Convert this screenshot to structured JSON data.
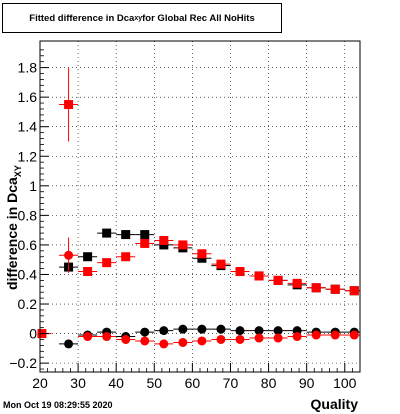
{
  "title_main": "Fitted difference in Dca",
  "title_sub": "xy",
  "title_rest": " for Global Rec All NoHits",
  "timestamp": "Mon Oct 19 08:29:55 2020",
  "chart_data": {
    "type": "scatter",
    "xlabel": "Quality",
    "ylabel_main": "difference in Dca",
    "ylabel_sub": "XY",
    "xlim": [
      20,
      104
    ],
    "ylim": [
      -0.26,
      1.98
    ],
    "xticks": [
      20,
      30,
      40,
      50,
      60,
      70,
      80,
      90,
      100
    ],
    "yticks": [
      -0.2,
      0,
      0.2,
      0.4,
      0.6,
      0.8,
      1,
      1.2,
      1.4,
      1.6,
      1.8
    ],
    "ytick_labels": [
      "−0.2",
      "0",
      "0.2",
      "0.4",
      "0.6",
      "0.8",
      "1",
      "1.2",
      "1.4",
      "1.6",
      "1.8"
    ],
    "grid": true,
    "colors": {
      "black": "#000000",
      "red": "#ff0000"
    },
    "series": [
      {
        "marker": "square",
        "color": "#000000",
        "x": [
          27.5,
          32.5,
          37.5,
          42.5,
          47.5,
          52.5,
          57.5,
          62.5,
          67.5,
          72.5,
          77.5,
          82.5,
          87.5,
          92.5,
          97.5,
          102.5
        ],
        "y": [
          0.45,
          0.52,
          0.68,
          0.67,
          0.67,
          0.6,
          0.58,
          0.51,
          0.46,
          0.42,
          0.39,
          0.36,
          0.33,
          0.31,
          0.3,
          0.29
        ]
      },
      {
        "marker": "square",
        "color": "#ff0000",
        "x": [
          20.5,
          27.5,
          32.5,
          37.5,
          42.5,
          47.5,
          52.5,
          57.5,
          62.5,
          67.5,
          72.5,
          77.5,
          82.5,
          87.5,
          92.5,
          97.5,
          102.5
        ],
        "y": [
          0.0,
          1.55,
          0.42,
          0.48,
          0.52,
          0.61,
          0.63,
          0.6,
          0.54,
          0.47,
          0.42,
          0.39,
          0.36,
          0.34,
          0.31,
          0.3,
          0.29
        ],
        "err_index": 1,
        "err": 0.25
      },
      {
        "marker": "circle",
        "color": "#000000",
        "x": [
          27.5,
          32.5,
          37.5,
          42.5,
          47.5,
          52.5,
          57.5,
          62.5,
          67.5,
          72.5,
          77.5,
          82.5,
          87.5,
          92.5,
          97.5,
          102.5
        ],
        "y": [
          -0.07,
          -0.01,
          0.01,
          -0.02,
          0.01,
          0.02,
          0.03,
          0.03,
          0.03,
          0.02,
          0.02,
          0.02,
          0.02,
          0.01,
          0.01,
          0.01
        ]
      },
      {
        "marker": "circle",
        "color": "#ff0000",
        "x": [
          27.5,
          32.5,
          37.5,
          42.5,
          47.5,
          52.5,
          57.5,
          62.5,
          67.5,
          72.5,
          77.5,
          82.5,
          87.5,
          92.5,
          97.5,
          102.5
        ],
        "y": [
          0.53,
          -0.02,
          -0.02,
          -0.04,
          -0.05,
          -0.07,
          -0.06,
          -0.05,
          -0.04,
          -0.04,
          -0.03,
          -0.03,
          -0.02,
          -0.01,
          -0.01,
          -0.01
        ],
        "err_index": 0,
        "err": 0.12
      }
    ]
  }
}
